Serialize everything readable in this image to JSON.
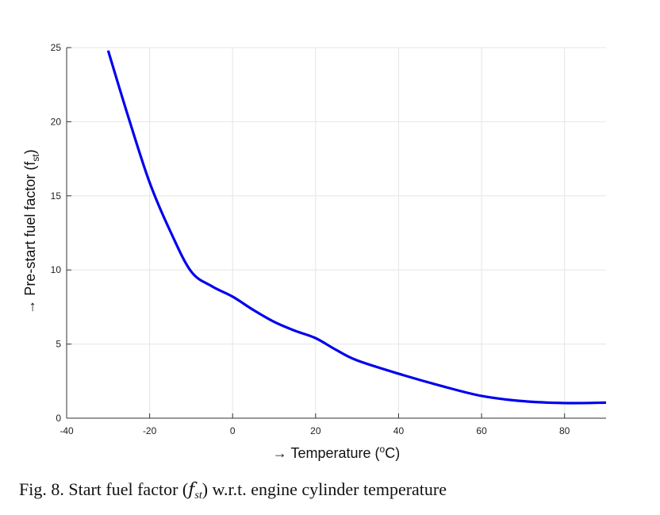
{
  "chart_data": {
    "type": "line",
    "xlabel_arrow": "→",
    "xlabel": "Temperature (",
    "xlabel_unit_sup": "o",
    "xlabel_unit": "C)",
    "ylabel_arrow": "→",
    "ylabel": "Pre-start fuel factor (f",
    "ylabel_sub": "st",
    "ylabel_close": ")",
    "xlim": [
      -40,
      90
    ],
    "ylim": [
      0,
      25
    ],
    "x_ticks": [
      -40,
      -20,
      0,
      20,
      40,
      60,
      80
    ],
    "y_ticks": [
      0,
      5,
      10,
      15,
      20,
      25
    ],
    "grid": true,
    "line_color": "#0000ee",
    "series": [
      {
        "x": [
          -30,
          -25,
          -20,
          -15,
          -10,
          -5,
          0,
          5,
          10,
          15,
          20,
          25,
          30,
          40,
          50,
          60,
          70,
          80,
          90
        ],
        "y": [
          24.8,
          20.2,
          15.9,
          12.6,
          9.9,
          8.9,
          8.2,
          7.3,
          6.5,
          5.9,
          5.4,
          4.6,
          3.9,
          3.0,
          2.2,
          1.5,
          1.15,
          1.02,
          1.05
        ]
      }
    ]
  },
  "caption": {
    "prefix": "Fig. 8.  Start fuel factor (",
    "symbol": "f",
    "symbol_sub": "st",
    "suffix": ") w.r.t. engine cylinder temperature"
  }
}
